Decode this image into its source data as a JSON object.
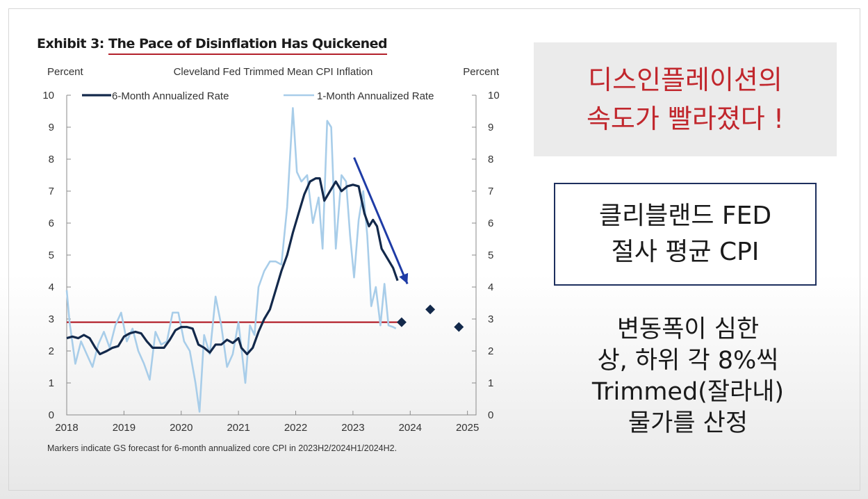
{
  "exhibit": {
    "label": "Exhibit 3: ",
    "title": "The Pace of Disinflation Has Quickened"
  },
  "chart_data": {
    "type": "line",
    "title": "Cleveland  Fed Trimmed  Mean  CPI  Inflation",
    "ylabel_left": "Percent",
    "ylabel_right": "Percent",
    "ylim": [
      0,
      10
    ],
    "xlim": [
      2018,
      2025.15
    ],
    "yticks": [
      "0",
      "1",
      "2",
      "3",
      "4",
      "5",
      "6",
      "7",
      "8",
      "9",
      "10"
    ],
    "xticks": [
      "2018",
      "2019",
      "2020",
      "2021",
      "2022",
      "2023",
      "2024",
      "2025"
    ],
    "legend_position": "top",
    "series": [
      {
        "name": "6-Month Annualized Rate",
        "color": "#13294b",
        "points": [
          [
            2018.0,
            2.4
          ],
          [
            2018.1,
            2.45
          ],
          [
            2018.2,
            2.4
          ],
          [
            2018.3,
            2.5
          ],
          [
            2018.4,
            2.4
          ],
          [
            2018.5,
            2.1
          ],
          [
            2018.58,
            1.9
          ],
          [
            2018.7,
            2.0
          ],
          [
            2018.8,
            2.1
          ],
          [
            2018.9,
            2.15
          ],
          [
            2019.0,
            2.45
          ],
          [
            2019.1,
            2.55
          ],
          [
            2019.2,
            2.6
          ],
          [
            2019.3,
            2.55
          ],
          [
            2019.4,
            2.3
          ],
          [
            2019.5,
            2.1
          ],
          [
            2019.6,
            2.1
          ],
          [
            2019.7,
            2.1
          ],
          [
            2019.8,
            2.35
          ],
          [
            2019.9,
            2.65
          ],
          [
            2020.0,
            2.75
          ],
          [
            2020.1,
            2.75
          ],
          [
            2020.2,
            2.7
          ],
          [
            2020.3,
            2.2
          ],
          [
            2020.4,
            2.1
          ],
          [
            2020.5,
            1.95
          ],
          [
            2020.6,
            2.2
          ],
          [
            2020.7,
            2.2
          ],
          [
            2020.8,
            2.35
          ],
          [
            2020.9,
            2.25
          ],
          [
            2021.0,
            2.4
          ],
          [
            2021.05,
            2.1
          ],
          [
            2021.15,
            1.9
          ],
          [
            2021.25,
            2.1
          ],
          [
            2021.35,
            2.6
          ],
          [
            2021.45,
            3.0
          ],
          [
            2021.55,
            3.3
          ],
          [
            2021.65,
            3.9
          ],
          [
            2021.75,
            4.5
          ],
          [
            2021.85,
            5.0
          ],
          [
            2021.95,
            5.7
          ],
          [
            2022.05,
            6.3
          ],
          [
            2022.15,
            6.9
          ],
          [
            2022.25,
            7.3
          ],
          [
            2022.35,
            7.4
          ],
          [
            2022.42,
            7.4
          ],
          [
            2022.5,
            6.7
          ],
          [
            2022.6,
            7.0
          ],
          [
            2022.7,
            7.3
          ],
          [
            2022.8,
            7.0
          ],
          [
            2022.9,
            7.15
          ],
          [
            2023.0,
            7.2
          ],
          [
            2023.1,
            7.15
          ],
          [
            2023.2,
            6.3
          ],
          [
            2023.28,
            5.9
          ],
          [
            2023.35,
            6.1
          ],
          [
            2023.42,
            5.9
          ],
          [
            2023.5,
            5.2
          ],
          [
            2023.6,
            4.9
          ],
          [
            2023.7,
            4.6
          ],
          [
            2023.78,
            4.2
          ]
        ]
      },
      {
        "name": "1-Month Annualized Rate",
        "color": "#a8cde9",
        "points": [
          [
            2018.0,
            3.9
          ],
          [
            2018.05,
            2.9
          ],
          [
            2018.15,
            1.6
          ],
          [
            2018.25,
            2.3
          ],
          [
            2018.35,
            1.9
          ],
          [
            2018.45,
            1.5
          ],
          [
            2018.55,
            2.2
          ],
          [
            2018.65,
            2.6
          ],
          [
            2018.75,
            2.1
          ],
          [
            2018.85,
            2.8
          ],
          [
            2018.95,
            3.2
          ],
          [
            2019.05,
            2.3
          ],
          [
            2019.15,
            2.7
          ],
          [
            2019.25,
            2.0
          ],
          [
            2019.35,
            1.6
          ],
          [
            2019.45,
            1.1
          ],
          [
            2019.55,
            2.6
          ],
          [
            2019.65,
            2.2
          ],
          [
            2019.75,
            2.3
          ],
          [
            2019.85,
            3.2
          ],
          [
            2019.95,
            3.2
          ],
          [
            2020.05,
            2.3
          ],
          [
            2020.15,
            2.0
          ],
          [
            2020.25,
            1.0
          ],
          [
            2020.32,
            0.1
          ],
          [
            2020.4,
            2.5
          ],
          [
            2020.5,
            1.9
          ],
          [
            2020.6,
            3.7
          ],
          [
            2020.7,
            2.8
          ],
          [
            2020.8,
            1.5
          ],
          [
            2020.9,
            1.9
          ],
          [
            2021.0,
            2.9
          ],
          [
            2021.05,
            2.1
          ],
          [
            2021.12,
            1.0
          ],
          [
            2021.2,
            2.8
          ],
          [
            2021.28,
            2.5
          ],
          [
            2021.35,
            4.0
          ],
          [
            2021.45,
            4.5
          ],
          [
            2021.55,
            4.8
          ],
          [
            2021.65,
            4.8
          ],
          [
            2021.75,
            4.7
          ],
          [
            2021.85,
            6.5
          ],
          [
            2021.95,
            9.6
          ],
          [
            2022.02,
            7.6
          ],
          [
            2022.1,
            7.3
          ],
          [
            2022.2,
            7.5
          ],
          [
            2022.3,
            6.0
          ],
          [
            2022.4,
            6.8
          ],
          [
            2022.47,
            5.2
          ],
          [
            2022.55,
            9.2
          ],
          [
            2022.62,
            9.0
          ],
          [
            2022.7,
            5.2
          ],
          [
            2022.8,
            7.5
          ],
          [
            2022.88,
            7.3
          ],
          [
            2022.95,
            5.6
          ],
          [
            2023.02,
            4.3
          ],
          [
            2023.1,
            6.1
          ],
          [
            2023.18,
            7.0
          ],
          [
            2023.25,
            5.6
          ],
          [
            2023.32,
            3.4
          ],
          [
            2023.4,
            4.0
          ],
          [
            2023.48,
            2.8
          ],
          [
            2023.55,
            4.1
          ],
          [
            2023.62,
            2.8
          ],
          [
            2023.7,
            2.75
          ],
          [
            2023.75,
            2.7
          ]
        ]
      }
    ],
    "forecast_markers": [
      [
        2023.85,
        2.9
      ],
      [
        2024.35,
        3.3
      ],
      [
        2024.85,
        2.75
      ]
    ],
    "reference_line": {
      "y": 2.9,
      "color": "#b3202a"
    },
    "trend_arrow": {
      "from": [
        2023.02,
        8.05
      ],
      "to": [
        2023.95,
        4.1
      ],
      "color": "#1f3ca6"
    },
    "caption": "Markers indicate GS  forecast for 6-month annualized core CPI  in 2023H2/2024H1/2024H2."
  },
  "annotations": {
    "headline_line1": "디스인플레이션의",
    "headline_line2": "속도가 빨라졌다 !",
    "box_line1": "클리블랜드 FED",
    "box_line2": "절사 평균 CPI",
    "note_line1": "변동폭이 심한",
    "note_line2": "상, 하위 각 8%씩",
    "note_line3": "Trimmed(잘라내)",
    "note_line4": "물가를 산정"
  }
}
